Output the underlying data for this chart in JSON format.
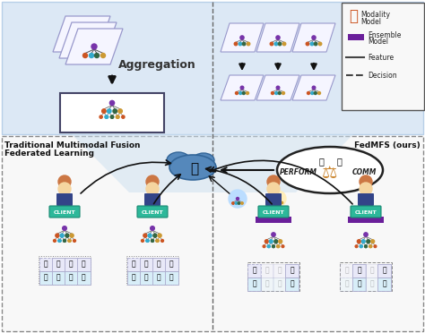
{
  "bg_color": "#ffffff",
  "top_panel_color": "#dce8f5",
  "top_panel_edge": "#b8cfe8",
  "bottom_panel_color": "#f0f4fa",
  "bottom_panel_edge": "#888888",
  "divider_color": "#666666",
  "arrow_color": "#111111",
  "ensemble_bar_color": "#6a1f9a",
  "client_box_color": "#2db89a",
  "client_box_edge": "#1a8a72",
  "legend_bg": "#f8f8f8",
  "legend_edge": "#555555",
  "card_color": "#f5f5ff",
  "card_edge": "#9999cc",
  "cloud_color": "#5588bb",
  "cloud_edge": "#336699",
  "tree_root_color": "#7733aa",
  "tree_child_colors": [
    "#cc5522",
    "#33aacc",
    "#336644",
    "#cc9933"
  ],
  "tree_line_color": "#555555",
  "modality_box_color": "#e8e8f8",
  "modality_box_edge": "#aaaacc",
  "perform_ellipse_color": "#ffffff",
  "perform_ellipse_edge": "#222222",
  "scale_color": "#cc8833",
  "top_left_label": "Aggregation",
  "bottom_left_label1": "Traditional Multimodal Fusion",
  "bottom_left_label2": "Federated Learning",
  "bottom_right_label": "FedMFS (ours)"
}
